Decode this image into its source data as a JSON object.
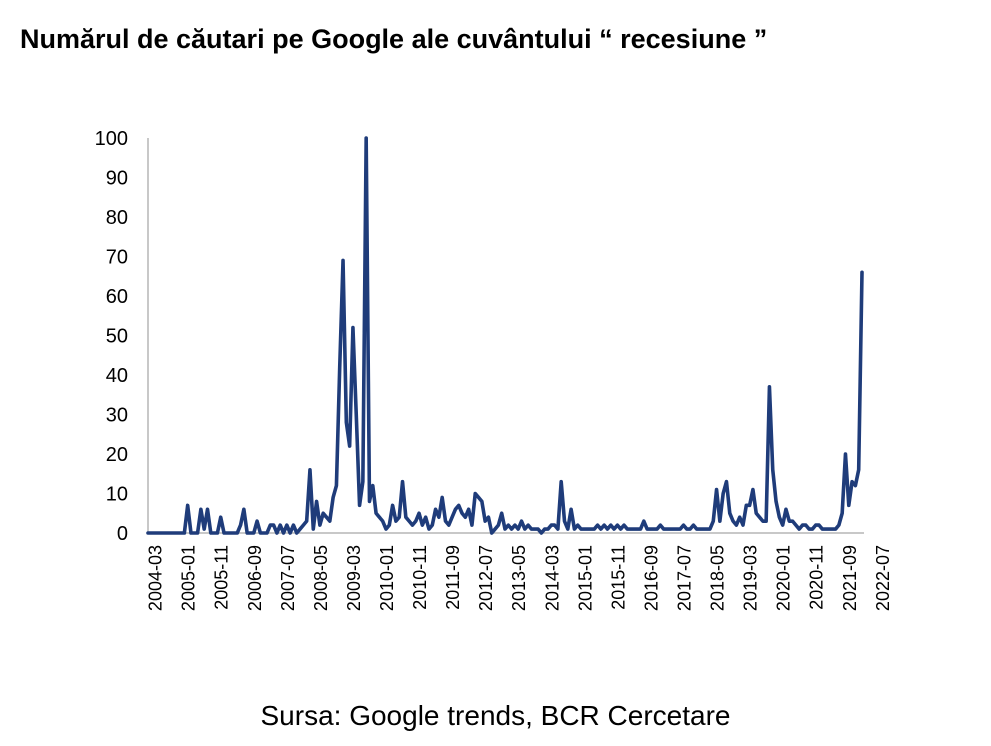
{
  "chart_data": {
    "type": "line",
    "title": "Numărul de căutari pe Google ale cuvântului “ recesiune ”",
    "source": "Sursa: Google trends, BCR Cercetare",
    "xlabel": "",
    "ylabel": "",
    "ylim": [
      0,
      100
    ],
    "yticks": [
      "0",
      "10",
      "20",
      "30",
      "40",
      "50",
      "60",
      "70",
      "80",
      "90",
      "100"
    ],
    "xticks": [
      "2004-03",
      "2005-01",
      "2005-11",
      "2006-09",
      "2007-07",
      "2008-05",
      "2009-03",
      "2010-01",
      "2010-11",
      "2011-09",
      "2012-07",
      "2013-05",
      "2014-03",
      "2015-01",
      "2015-11",
      "2016-09",
      "2017-07",
      "2018-05",
      "2019-03",
      "2020-01",
      "2020-11",
      "2021-09",
      "2022-07"
    ],
    "x_start": "2004-01",
    "grid": false,
    "legend": "none",
    "line_color": "#1f3c7a",
    "series": [
      {
        "values": [
          0,
          0,
          0,
          0,
          0,
          0,
          0,
          0,
          0,
          0,
          0,
          0,
          7,
          0,
          0,
          0,
          6,
          1,
          6,
          0,
          0,
          0,
          4,
          0,
          0,
          0,
          0,
          0,
          2,
          6,
          0,
          0,
          0,
          3,
          0,
          0,
          0,
          2,
          2,
          0,
          2,
          0,
          2,
          0,
          2,
          0,
          1,
          2,
          3,
          16,
          1,
          8,
          2,
          5,
          4,
          3,
          9,
          12,
          42,
          69,
          28,
          22,
          52,
          30,
          7,
          13,
          100,
          8,
          12,
          5,
          4,
          3,
          1,
          2,
          7,
          3,
          4,
          13,
          4,
          3,
          2,
          3,
          5,
          2,
          4,
          1,
          2,
          6,
          4,
          9,
          3,
          2,
          4,
          6,
          7,
          5,
          4,
          6,
          2,
          10,
          9,
          8,
          3,
          4,
          0,
          1,
          2,
          5,
          1,
          2,
          1,
          2,
          1,
          3,
          1,
          2,
          1,
          1,
          1,
          0,
          1,
          1,
          2,
          2,
          1,
          13,
          3,
          1,
          6,
          1,
          2,
          1,
          1,
          1,
          1,
          1,
          2,
          1,
          2,
          1,
          2,
          1,
          2,
          1,
          2,
          1,
          1,
          1,
          1,
          1,
          3,
          1,
          1,
          1,
          1,
          2,
          1,
          1,
          1,
          1,
          1,
          1,
          2,
          1,
          1,
          2,
          1,
          1,
          1,
          1,
          1,
          3,
          11,
          3,
          10,
          13,
          5,
          3,
          2,
          4,
          2,
          7,
          7,
          11,
          5,
          4,
          3,
          3,
          37,
          16,
          8,
          4,
          2,
          6,
          3,
          3,
          2,
          1,
          2,
          2,
          1,
          1,
          2,
          2,
          1,
          1,
          1,
          1,
          1,
          2,
          5,
          20,
          7,
          13,
          12,
          16,
          66
        ]
      }
    ]
  }
}
